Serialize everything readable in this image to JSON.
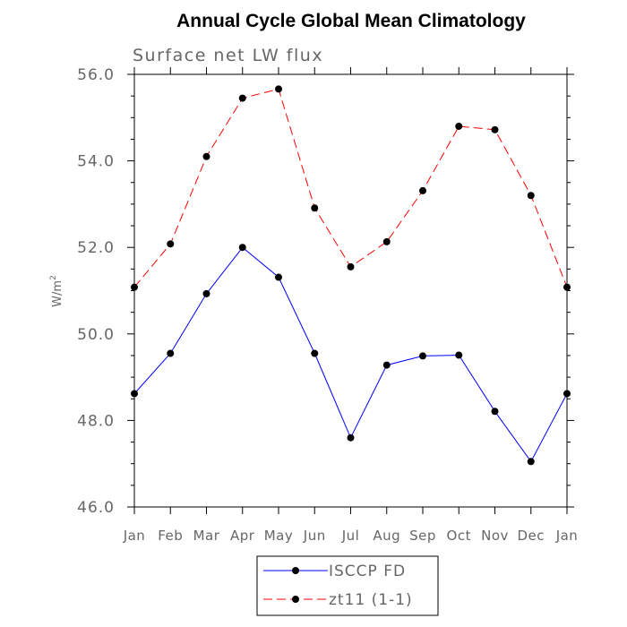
{
  "chart_data": {
    "type": "line",
    "title": "Annual Cycle Global Mean Climatology",
    "subtitle": "Surface net LW flux",
    "ylabel": "W/m",
    "ylabel_sup": "2",
    "xlabel": "",
    "ylim": [
      46.0,
      56.0
    ],
    "yticks": [
      "46.0",
      "48.0",
      "50.0",
      "52.0",
      "54.0",
      "56.0"
    ],
    "yticks_values": [
      46,
      48,
      50,
      52,
      54,
      56
    ],
    "categories": [
      "Jan",
      "Feb",
      "Mar",
      "Apr",
      "May",
      "Jun",
      "Jul",
      "Aug",
      "Sep",
      "Oct",
      "Nov",
      "Dec",
      "Jan"
    ],
    "grid": false,
    "legend_position": "bottom",
    "series": [
      {
        "name": "ISCCP FD",
        "color": "#0000ff",
        "dash": "solid",
        "marker": "circle",
        "values": [
          48.62,
          49.55,
          50.93,
          52.0,
          51.31,
          49.55,
          47.6,
          49.28,
          49.49,
          49.51,
          48.21,
          47.05,
          48.62
        ]
      },
      {
        "name": "zt11 (1-1)",
        "color": "#ff0000",
        "dash": "dashed",
        "marker": "circle",
        "values": [
          51.08,
          52.08,
          54.1,
          55.45,
          55.66,
          52.91,
          51.55,
          52.13,
          53.31,
          54.8,
          54.72,
          53.2,
          51.08
        ]
      }
    ]
  }
}
